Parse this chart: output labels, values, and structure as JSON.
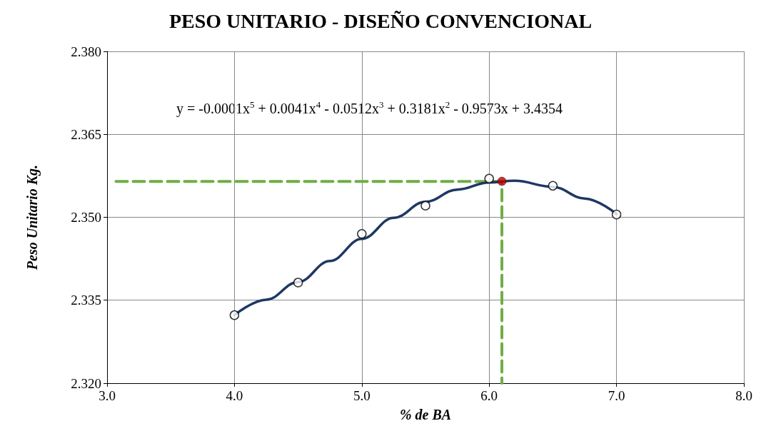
{
  "chart_data": {
    "type": "scatter",
    "title": "PESO UNITARIO - DISEÑO CONVENCIONAL",
    "xlabel": "% de BA",
    "ylabel": "Peso Unitario Kg.",
    "xlim": [
      3,
      8
    ],
    "xticks": [
      {
        "value": 3,
        "label": "3.0"
      },
      {
        "value": 4,
        "label": "4.0"
      },
      {
        "value": 5,
        "label": "5.0"
      },
      {
        "value": 6,
        "label": "6.0"
      },
      {
        "value": 7,
        "label": "7.0"
      },
      {
        "value": 8,
        "label": "8.0"
      }
    ],
    "ylim": [
      2.32,
      2.38
    ],
    "yticks": [
      {
        "value": 2.32,
        "label": "2.320"
      },
      {
        "value": 2.335,
        "label": "2.335"
      },
      {
        "value": 2.35,
        "label": "2.350"
      },
      {
        "value": 2.365,
        "label": "2.365"
      },
      {
        "value": 2.38,
        "label": "2.380"
      }
    ],
    "grid": true,
    "annotations": [
      "y = -0.0001x$^{5}$ + 0.0041x$^{4}$ - 0.0512x$^{3}$ + 0.3181x$^{2}$ - 0.9573x + 3.4354"
    ],
    "series": [
      {
        "type": "line",
        "color": "#70ad47",
        "line_style": "dashed",
        "marker": "none",
        "x": [
          3.07,
          6.1,
          6.1
        ],
        "values": [
          2.3565,
          2.3565,
          2.32
        ]
      },
      {
        "type": "line",
        "color": "#1f3864",
        "line_style": "solid",
        "marker": "none",
        "x": [
          4.0,
          4.25,
          4.5,
          4.75,
          5.0,
          5.25,
          5.5,
          5.75,
          6.0,
          6.2,
          6.5,
          6.75,
          7.0
        ],
        "values": [
          2.3323,
          2.3351,
          2.3383,
          2.3421,
          2.3461,
          2.3499,
          2.3528,
          2.355,
          2.3563,
          2.3566,
          2.3555,
          2.3534,
          2.3506
        ]
      },
      {
        "color": "#000000",
        "marker": "circle",
        "x": [
          4.0,
          4.5,
          5.0,
          5.5,
          6.0,
          6.5,
          7.0
        ],
        "values": [
          2.3323,
          2.3382,
          2.347,
          2.3521,
          2.357,
          2.3557,
          2.3505
        ]
      },
      {
        "color": "#c00000",
        "marker": "circle",
        "x": [
          6.1
        ],
        "values": [
          2.3565
        ]
      }
    ]
  }
}
